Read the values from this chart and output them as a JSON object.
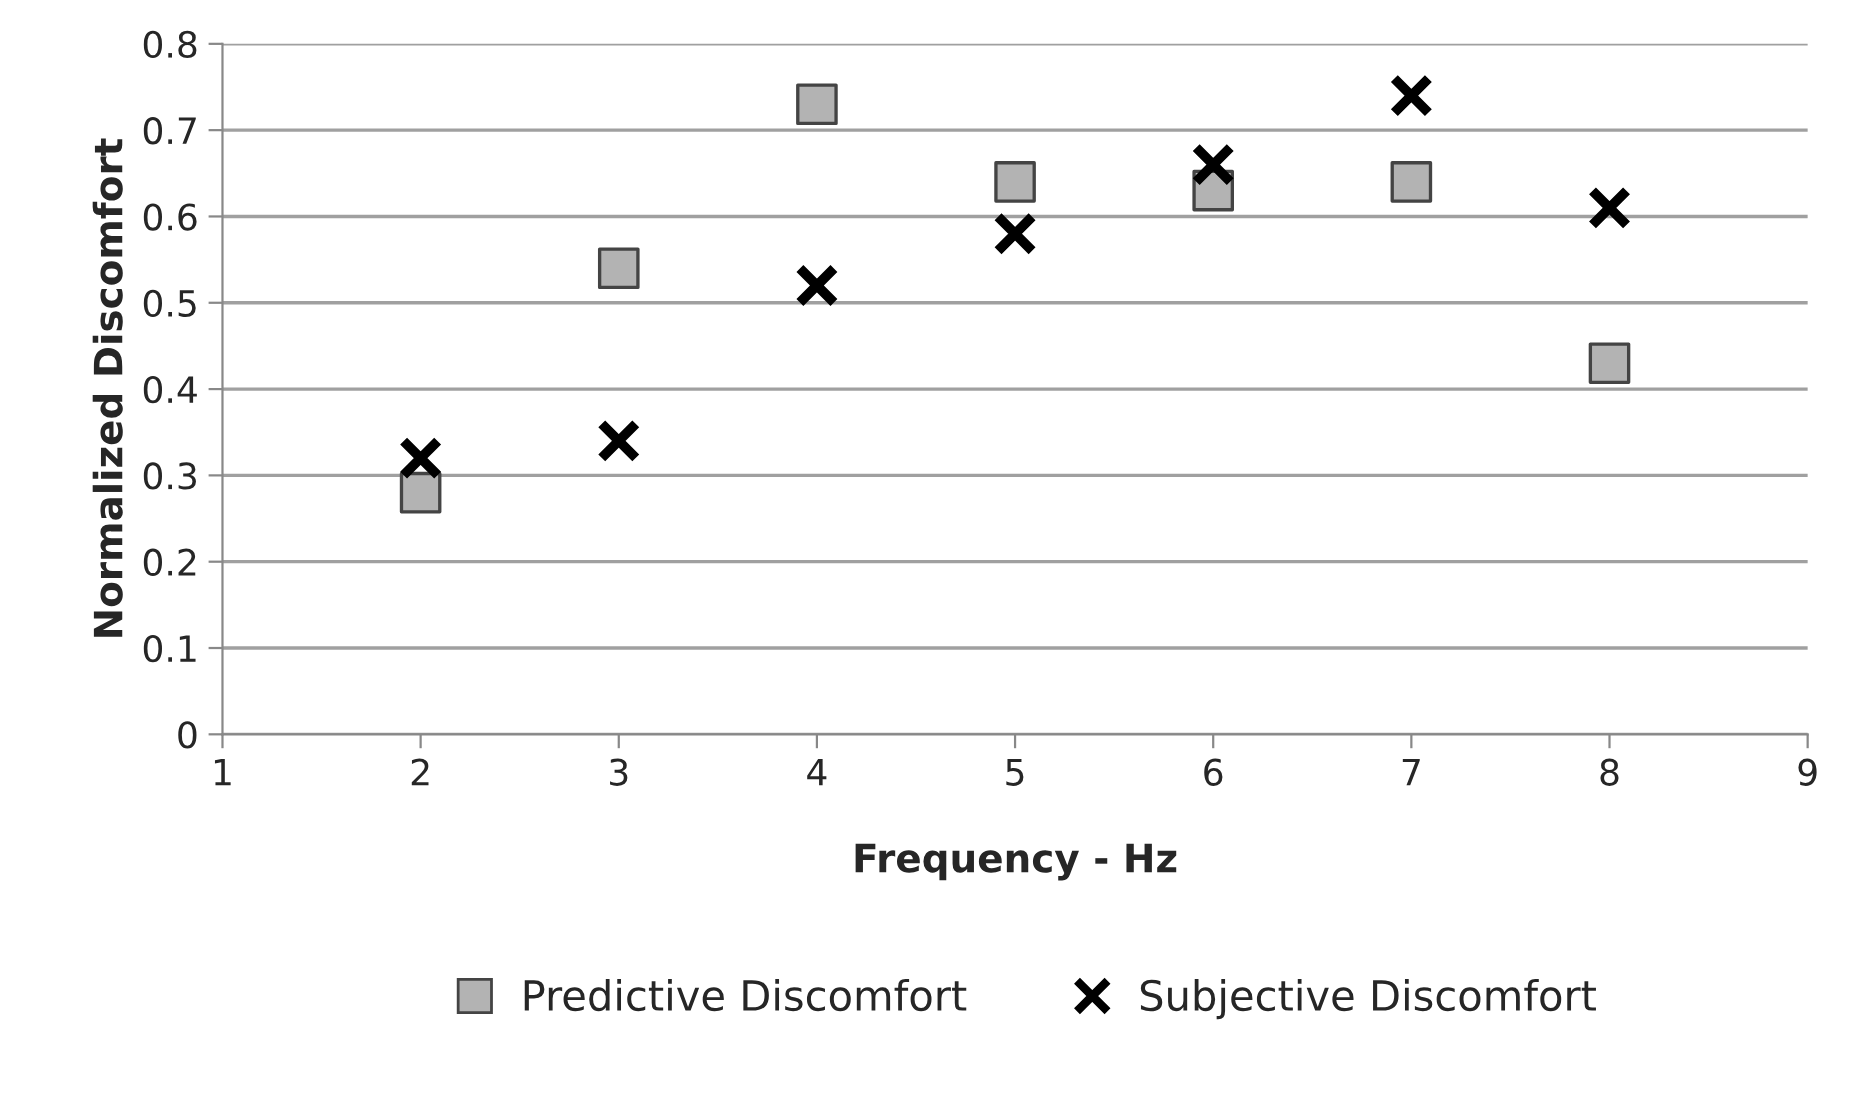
{
  "chart_data": {
    "type": "scatter",
    "xlabel": "Frequency - Hz",
    "ylabel": "Normalized Discomfort",
    "x": [
      2,
      3,
      4,
      5,
      6,
      7,
      8
    ],
    "series": [
      {
        "name": "Predictive Discomfort",
        "color": "#b3b3b3",
        "marker": "square",
        "values": [
          0.28,
          0.54,
          0.73,
          0.64,
          0.63,
          0.64,
          0.43
        ]
      },
      {
        "name": "Subjective Discomfort",
        "color": "#000000",
        "marker": "cross",
        "values": [
          0.32,
          0.34,
          0.52,
          0.58,
          0.66,
          0.74,
          0.61
        ]
      }
    ],
    "xlim": [
      1,
      9
    ],
    "xticks": [
      1,
      2,
      3,
      4,
      5,
      6,
      7,
      8,
      9
    ],
    "ylim": [
      0,
      0.8
    ],
    "yticks": [
      0,
      0.1,
      0.2,
      0.3,
      0.4,
      0.5,
      0.6,
      0.7,
      0.8
    ],
    "grid": "y",
    "legend": "bottom"
  }
}
